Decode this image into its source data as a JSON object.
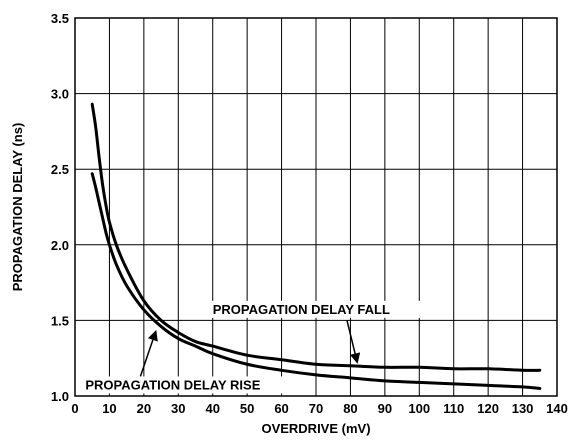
{
  "chart_data": {
    "type": "line",
    "title": "",
    "xlabel": "OVERDRIVE (mV)",
    "ylabel": "PROPAGATION DELAY (ns)",
    "xlim": [
      0,
      140
    ],
    "ylim": [
      1.0,
      3.5
    ],
    "x_ticks": [
      0,
      10,
      20,
      30,
      40,
      50,
      60,
      70,
      80,
      90,
      100,
      110,
      120,
      130,
      140
    ],
    "y_ticks": [
      1.0,
      1.5,
      2.0,
      2.5,
      3.0,
      3.5
    ],
    "x_tick_labels": [
      "0",
      "10",
      "20",
      "30",
      "40",
      "50",
      "60",
      "70",
      "80",
      "90",
      "100",
      "110",
      "120",
      "130",
      "140"
    ],
    "y_tick_labels": [
      "1.0",
      "1.5",
      "2.0",
      "2.5",
      "3.0",
      "3.5"
    ],
    "grid": true,
    "series": [
      {
        "name": "PROPAGATION DELAY FALL",
        "x": [
          5,
          6,
          7,
          8,
          9,
          10,
          12,
          15,
          20,
          25,
          30,
          35,
          40,
          50,
          60,
          70,
          80,
          90,
          100,
          110,
          120,
          130,
          135
        ],
        "y": [
          2.93,
          2.78,
          2.58,
          2.4,
          2.26,
          2.15,
          2.0,
          1.84,
          1.63,
          1.5,
          1.42,
          1.36,
          1.33,
          1.27,
          1.24,
          1.21,
          1.2,
          1.19,
          1.19,
          1.18,
          1.18,
          1.17,
          1.17
        ]
      },
      {
        "name": "PROPAGATION DELAY RISE",
        "x": [
          5,
          6,
          7,
          8,
          9,
          10,
          12,
          15,
          20,
          25,
          30,
          35,
          40,
          50,
          60,
          70,
          80,
          90,
          100,
          110,
          120,
          130,
          135
        ],
        "y": [
          2.47,
          2.38,
          2.28,
          2.18,
          2.08,
          2.0,
          1.87,
          1.73,
          1.57,
          1.46,
          1.38,
          1.33,
          1.28,
          1.21,
          1.17,
          1.14,
          1.12,
          1.1,
          1.09,
          1.08,
          1.07,
          1.06,
          1.05
        ]
      }
    ],
    "annotations": [
      {
        "text": "PROPAGATION DELAY FALL",
        "points_to": "PROPAGATION DELAY FALL"
      },
      {
        "text": "PROPAGATION DELAY RISE",
        "points_to": "PROPAGATION DELAY RISE"
      }
    ]
  }
}
